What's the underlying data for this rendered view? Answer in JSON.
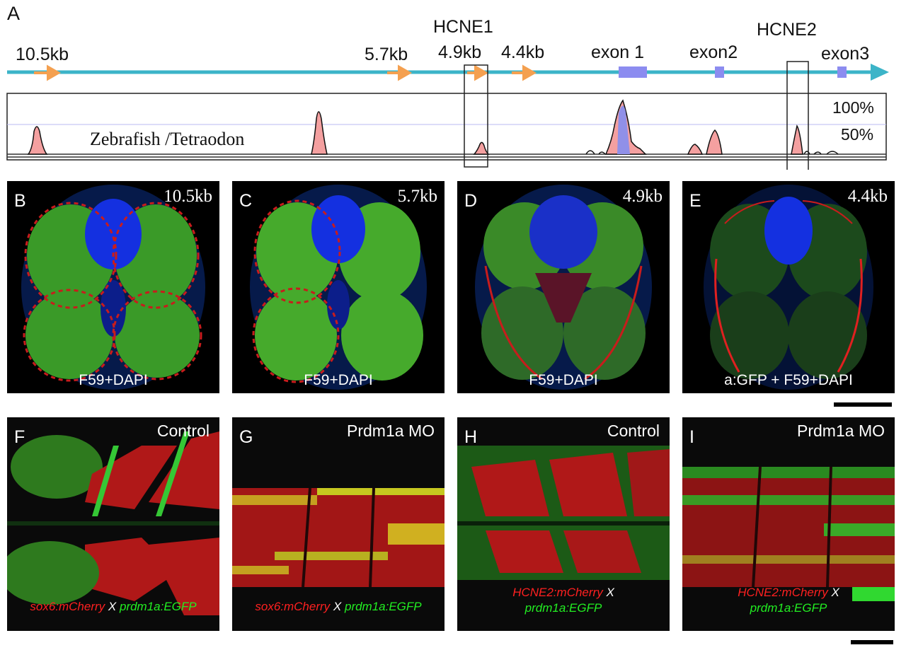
{
  "panel_a": {
    "letter": "A",
    "regions": [
      "10.5kb",
      "5.7kb",
      "4.9kb",
      "4.4kb"
    ],
    "exons": [
      "exon 1",
      "exon2",
      "exon3"
    ],
    "hcne": [
      "HCNE1",
      "HCNE2"
    ],
    "species_label": "Zebrafish /Tetraodon",
    "percent_labels": [
      "100%",
      "50%"
    ]
  },
  "section_panels": [
    {
      "letter": "B",
      "size": "10.5kb",
      "stain": "F59+DAPI"
    },
    {
      "letter": "C",
      "size": "5.7kb",
      "stain": "F59+DAPI"
    },
    {
      "letter": "D",
      "size": "4.9kb",
      "stain": "F59+DAPI"
    },
    {
      "letter": "E",
      "size": "4.4kb",
      "stain": "a:GFP + F59+DAPI"
    }
  ],
  "lateral_panels": [
    {
      "letter": "F",
      "condition": "Control",
      "red_label": "sox6:mCherry",
      "x": "X",
      "green_label": "prdm1a:EGFP"
    },
    {
      "letter": "G",
      "condition": "Prdm1a MO",
      "red_label": "sox6:mCherry",
      "x": "X",
      "green_label": "prdm1a:EGFP"
    },
    {
      "letter": "H",
      "condition": "Control",
      "red_label": "HCNE2:mCherry",
      "x": "X",
      "green_label": "prdm1a:EGFP"
    },
    {
      "letter": "I",
      "condition": "Prdm1a MO",
      "red_label": "HCNE2:mCherry",
      "x": "X",
      "green_label": "prdm1a:EGFP"
    }
  ],
  "colors": {
    "axis_line": "#3cb4c8",
    "arrow": "#f4a050",
    "exon": "#8c8cf0",
    "peak_red": "#f4a0a0",
    "peak_blue": "#9090e8",
    "dapi": "#1428e6",
    "f59": "#3cb428",
    "mcherry": "#d81c1c",
    "egfp": "#30d830"
  }
}
